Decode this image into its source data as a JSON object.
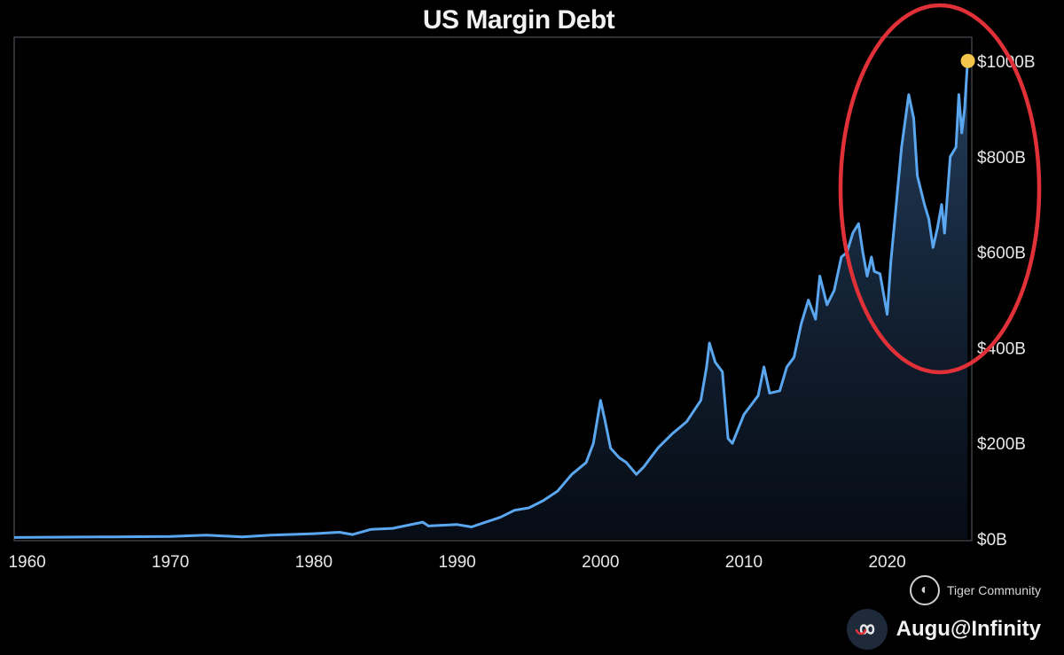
{
  "chart_data": {
    "type": "area",
    "title": "US Margin Debt",
    "xlabel": "",
    "ylabel": "",
    "x_ticks": [
      "1960",
      "1970",
      "1980",
      "1990",
      "2000",
      "2010",
      "2020"
    ],
    "y_ticks": [
      "$0B",
      "$200B",
      "$400B",
      "$600B",
      "$800B",
      "$1000B"
    ],
    "xlim": [
      1959.1,
      2025.9
    ],
    "ylim": [
      0,
      1000
    ],
    "grid": false,
    "legend": "none",
    "line_color": "#5aa7f0",
    "highlight_color": "#e03038",
    "end_marker_color": "#f2c54b",
    "series": [
      {
        "x": [
          1959.1,
          1965,
          1970,
          1972.5,
          1975,
          1977,
          1980,
          1981.8,
          1982.7,
          1984,
          1985.5,
          1987.6,
          1988,
          1990,
          1991,
          1992,
          1993,
          1994,
          1995,
          1996,
          1997,
          1998,
          1999,
          1999.5,
          2000.0,
          2000.3,
          2000.7,
          2001.3,
          2001.8,
          2002.5,
          2003,
          2003.5,
          2004,
          2005,
          2006,
          2007,
          2007.4,
          2007.6,
          2008,
          2008.5,
          2008.9,
          2009.2,
          2009.6,
          2010,
          2010.5,
          2011,
          2011.4,
          2011.8,
          2012.5,
          2013,
          2013.5,
          2014,
          2014.5,
          2015,
          2015.3,
          2015.8,
          2016.3,
          2016.8,
          2017.2,
          2017.6,
          2018.0,
          2018.3,
          2018.6,
          2018.9,
          2019.1,
          2019.5,
          2020.0,
          2020.25,
          2020.6,
          2021.0,
          2021.5,
          2021.85,
          2022.1,
          2022.6,
          2022.9,
          2023.2,
          2023.5,
          2023.8,
          2024.0,
          2024.4,
          2024.8,
          2025.0,
          2025.2,
          2025.4,
          2025.6
        ],
        "values": [
          3,
          4,
          5,
          8,
          4,
          8,
          11,
          14,
          9,
          20,
          22,
          35,
          27,
          30,
          25,
          35,
          45,
          60,
          65,
          80,
          100,
          135,
          160,
          200,
          290,
          250,
          190,
          170,
          160,
          135,
          150,
          170,
          190,
          220,
          245,
          290,
          360,
          410,
          370,
          350,
          210,
          200,
          230,
          260,
          280,
          300,
          360,
          305,
          310,
          360,
          380,
          450,
          500,
          460,
          550,
          490,
          520,
          590,
          600,
          640,
          660,
          600,
          550,
          590,
          560,
          555,
          470,
          580,
          690,
          820,
          930,
          880,
          760,
          700,
          670,
          610,
          650,
          700,
          640,
          800,
          820,
          930,
          850,
          900,
          995
        ]
      }
    ]
  },
  "watermark": {
    "community": "Tiger Community",
    "author": "Augu@Infinity"
  }
}
